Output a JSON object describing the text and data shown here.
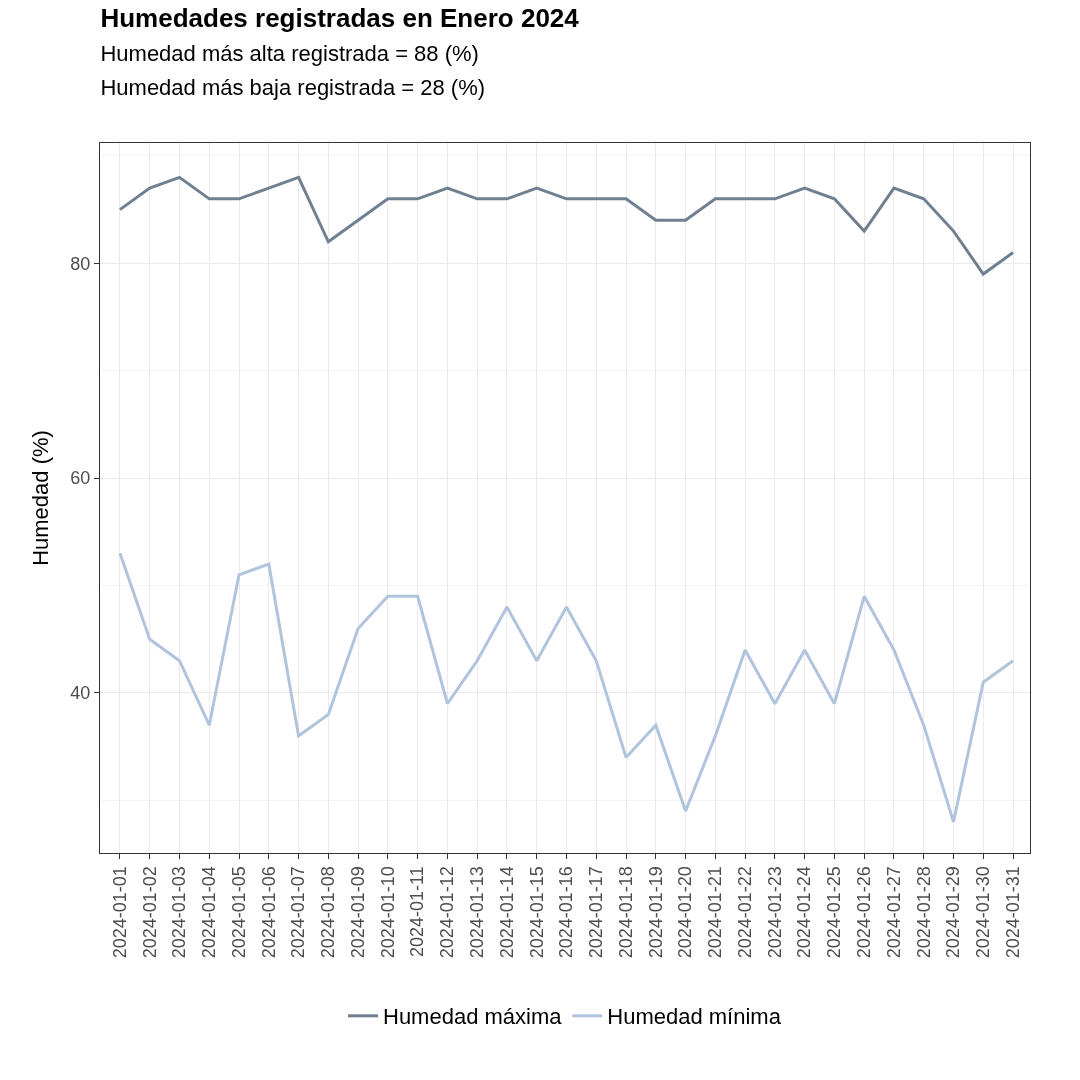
{
  "chart_data": {
    "type": "line",
    "title": "Humedades registradas en Enero 2024",
    "subtitle": "Humedad más alta registrada = 88 (%)\nHumedad más baja registrada = 28 (%)",
    "ylabel": "Humedad (%)",
    "categories": [
      "2024-01-01",
      "2024-01-02",
      "2024-01-03",
      "2024-01-04",
      "2024-01-05",
      "2024-01-06",
      "2024-01-07",
      "2024-01-08",
      "2024-01-09",
      "2024-01-10",
      "2024-01-11",
      "2024-01-12",
      "2024-01-13",
      "2024-01-14",
      "2024-01-15",
      "2024-01-16",
      "2024-01-17",
      "2024-01-18",
      "2024-01-19",
      "2024-01-20",
      "2024-01-21",
      "2024-01-22",
      "2024-01-23",
      "2024-01-24",
      "2024-01-25",
      "2024-01-26",
      "2024-01-27",
      "2024-01-28",
      "2024-01-29",
      "2024-01-30",
      "2024-01-31"
    ],
    "series": [
      {
        "name": "Humedad máxima",
        "color": "#708090",
        "values": [
          85,
          87,
          88,
          86,
          86,
          87,
          88,
          82,
          84,
          86,
          86,
          87,
          86,
          86,
          87,
          86,
          86,
          86,
          84,
          84,
          86,
          86,
          86,
          87,
          86,
          83,
          87,
          86,
          83,
          79,
          81
        ]
      },
      {
        "name": "Humedad mínima",
        "color": "#b0c4de",
        "values": [
          53,
          45,
          43,
          37,
          51,
          52,
          36,
          38,
          46,
          49,
          49,
          39,
          43,
          48,
          43,
          48,
          43,
          34,
          37,
          29,
          36,
          44,
          39,
          44,
          39,
          49,
          44,
          37,
          28,
          41,
          43
        ]
      }
    ],
    "ylim": [
      25.1,
      91.2
    ],
    "yticks": [
      40,
      60,
      80
    ],
    "grid": true,
    "legend": "bottom",
    "line_style": "solid",
    "marker": "none"
  }
}
